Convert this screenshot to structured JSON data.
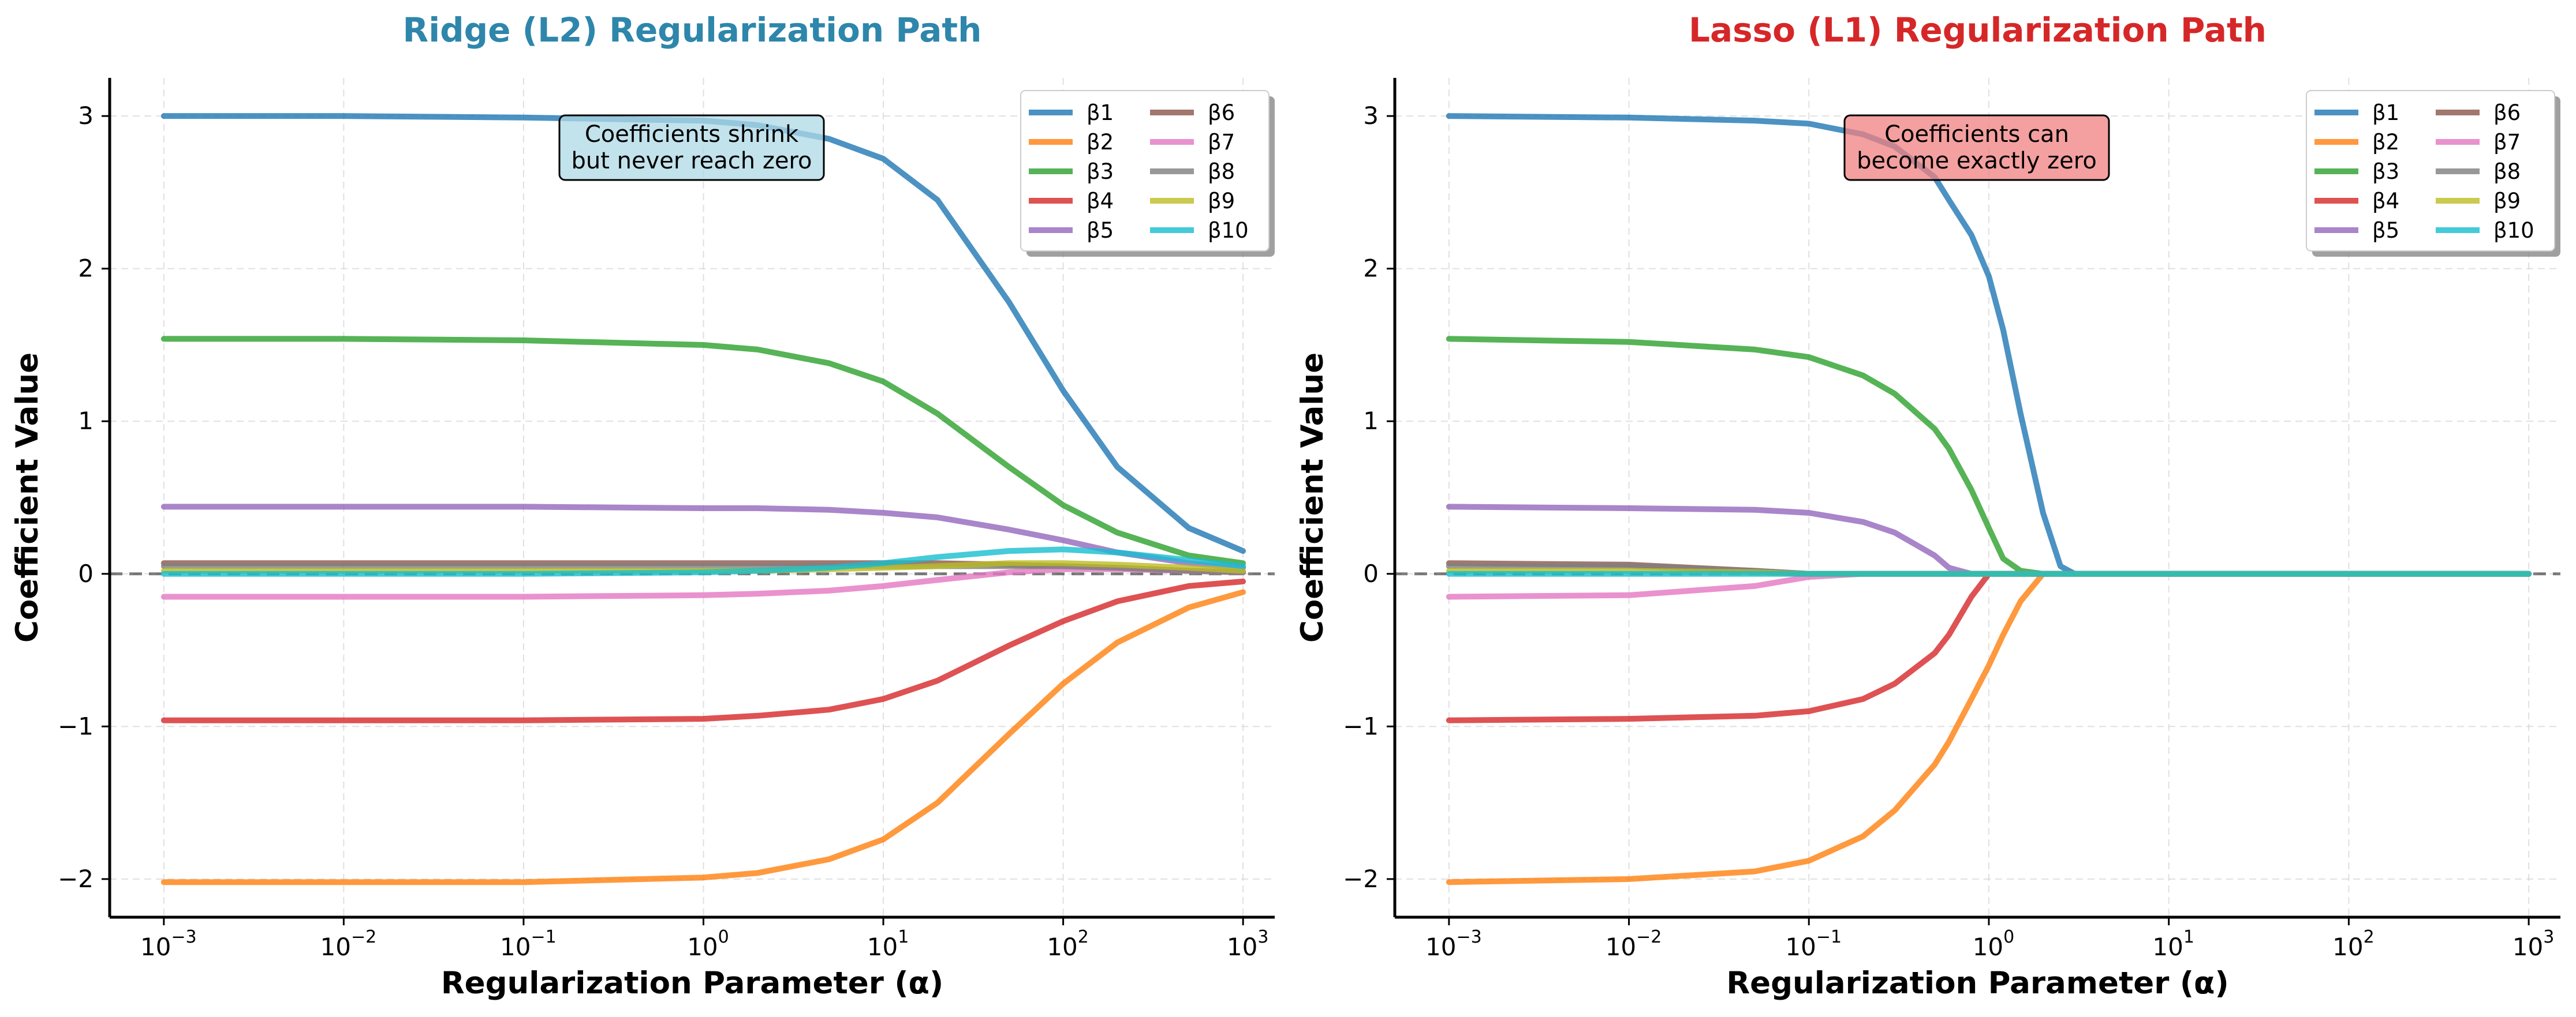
{
  "chart_data": [
    {
      "type": "line",
      "title": "Ridge (L2) Regularization Path",
      "title_color": "#2e86ab",
      "xlabel": "Regularization Parameter (α)",
      "ylabel": "Coefficient Value",
      "xscale": "log",
      "xlim": [
        0.0005,
        1500
      ],
      "ylim": [
        -2.25,
        3.25
      ],
      "x_ticks": [
        {
          "base": "10",
          "exp": "−3"
        },
        {
          "base": "10",
          "exp": "−2"
        },
        {
          "base": "10",
          "exp": "−1"
        },
        {
          "base": "10",
          "exp": "0"
        },
        {
          "base": "10",
          "exp": "1"
        },
        {
          "base": "10",
          "exp": "2"
        },
        {
          "base": "10",
          "exp": "3"
        }
      ],
      "y_ticks": [
        "−2",
        "−1",
        "0",
        "1",
        "2",
        "3"
      ],
      "grid": true,
      "legend_position": "top-right",
      "annotation": {
        "lines": [
          "Coefficients shrink",
          "but never reach zero"
        ],
        "bg": "#add8e6"
      },
      "x": [
        0.001,
        0.01,
        0.1,
        1,
        2,
        5,
        10,
        20,
        50,
        100,
        200,
        500,
        1000
      ],
      "series": [
        {
          "name": "β1",
          "color": "#1f77b4",
          "values": [
            3.0,
            3.0,
            2.99,
            2.97,
            2.94,
            2.85,
            2.72,
            2.45,
            1.78,
            1.2,
            0.7,
            0.3,
            0.15
          ]
        },
        {
          "name": "β2",
          "color": "#ff7f0e",
          "values": [
            -2.02,
            -2.02,
            -2.02,
            -1.99,
            -1.96,
            -1.87,
            -1.74,
            -1.5,
            -1.05,
            -0.72,
            -0.45,
            -0.22,
            -0.12
          ]
        },
        {
          "name": "β3",
          "color": "#2ca02c",
          "values": [
            1.54,
            1.54,
            1.53,
            1.5,
            1.47,
            1.38,
            1.26,
            1.05,
            0.7,
            0.45,
            0.27,
            0.12,
            0.07
          ]
        },
        {
          "name": "β4",
          "color": "#d62728",
          "values": [
            -0.96,
            -0.96,
            -0.96,
            -0.95,
            -0.93,
            -0.89,
            -0.82,
            -0.7,
            -0.47,
            -0.31,
            -0.18,
            -0.08,
            -0.05
          ]
        },
        {
          "name": "β5",
          "color": "#9467bd",
          "values": [
            0.44,
            0.44,
            0.44,
            0.43,
            0.43,
            0.42,
            0.4,
            0.37,
            0.29,
            0.22,
            0.14,
            0.07,
            0.04
          ]
        },
        {
          "name": "β6",
          "color": "#8c564b",
          "values": [
            0.07,
            0.07,
            0.07,
            0.07,
            0.07,
            0.07,
            0.07,
            0.07,
            0.06,
            0.05,
            0.04,
            0.02,
            0.01
          ]
        },
        {
          "name": "β7",
          "color": "#e377c2",
          "values": [
            -0.15,
            -0.15,
            -0.15,
            -0.14,
            -0.13,
            -0.11,
            -0.08,
            -0.04,
            0.01,
            0.03,
            0.03,
            0.02,
            0.01
          ]
        },
        {
          "name": "β8",
          "color": "#7f7f7f",
          "values": [
            0.05,
            0.05,
            0.05,
            0.05,
            0.05,
            0.05,
            0.05,
            0.05,
            0.05,
            0.05,
            0.04,
            0.02,
            0.01
          ]
        },
        {
          "name": "β9",
          "color": "#bcbd22",
          "values": [
            0.02,
            0.02,
            0.02,
            0.02,
            0.02,
            0.03,
            0.04,
            0.05,
            0.07,
            0.07,
            0.06,
            0.04,
            0.02
          ]
        },
        {
          "name": "β10",
          "color": "#17becf",
          "values": [
            0.0,
            0.0,
            0.0,
            0.01,
            0.02,
            0.04,
            0.07,
            0.11,
            0.15,
            0.16,
            0.14,
            0.09,
            0.05
          ]
        }
      ]
    },
    {
      "type": "line",
      "title": "Lasso (L1) Regularization Path",
      "title_color": "#d62728",
      "xlabel": "Regularization Parameter (α)",
      "ylabel": "Coefficient Value",
      "xscale": "log",
      "xlim": [
        0.0005,
        1500
      ],
      "ylim": [
        -2.25,
        3.25
      ],
      "x_ticks": [
        {
          "base": "10",
          "exp": "−3"
        },
        {
          "base": "10",
          "exp": "−2"
        },
        {
          "base": "10",
          "exp": "−1"
        },
        {
          "base": "10",
          "exp": "0"
        },
        {
          "base": "10",
          "exp": "1"
        },
        {
          "base": "10",
          "exp": "2"
        },
        {
          "base": "10",
          "exp": "3"
        }
      ],
      "y_ticks": [
        "−2",
        "−1",
        "0",
        "1",
        "2",
        "3"
      ],
      "grid": true,
      "legend_position": "top-right",
      "annotation": {
        "lines": [
          "Coefficients can",
          "become exactly zero"
        ],
        "bg": "#f08080"
      },
      "x": [
        0.001,
        0.01,
        0.05,
        0.1,
        0.2,
        0.3,
        0.5,
        0.6,
        0.8,
        1.0,
        1.2,
        1.5,
        2.0,
        2.5,
        3.0,
        10,
        100,
        1000
      ],
      "series": [
        {
          "name": "β1",
          "color": "#1f77b4",
          "values": [
            3.0,
            2.99,
            2.97,
            2.95,
            2.88,
            2.8,
            2.6,
            2.45,
            2.22,
            1.95,
            1.6,
            1.05,
            0.4,
            0.05,
            0,
            0,
            0,
            0
          ]
        },
        {
          "name": "β2",
          "color": "#ff7f0e",
          "values": [
            -2.02,
            -2.0,
            -1.95,
            -1.88,
            -1.72,
            -1.55,
            -1.25,
            -1.1,
            -0.82,
            -0.6,
            -0.4,
            -0.18,
            0,
            0,
            0,
            0,
            0,
            0
          ]
        },
        {
          "name": "β3",
          "color": "#2ca02c",
          "values": [
            1.54,
            1.52,
            1.47,
            1.42,
            1.3,
            1.18,
            0.95,
            0.82,
            0.55,
            0.3,
            0.1,
            0.02,
            0,
            0,
            0,
            0,
            0,
            0
          ]
        },
        {
          "name": "β4",
          "color": "#d62728",
          "values": [
            -0.96,
            -0.95,
            -0.93,
            -0.9,
            -0.82,
            -0.72,
            -0.52,
            -0.4,
            -0.15,
            0,
            0,
            0,
            0,
            0,
            0,
            0,
            0,
            0
          ]
        },
        {
          "name": "β5",
          "color": "#9467bd",
          "values": [
            0.44,
            0.43,
            0.42,
            0.4,
            0.34,
            0.27,
            0.12,
            0.04,
            0,
            0,
            0,
            0,
            0,
            0,
            0,
            0,
            0,
            0
          ]
        },
        {
          "name": "β6",
          "color": "#8c564b",
          "values": [
            0.07,
            0.06,
            0.02,
            0,
            0,
            0,
            0,
            0,
            0,
            0,
            0,
            0,
            0,
            0,
            0,
            0,
            0,
            0
          ]
        },
        {
          "name": "β7",
          "color": "#e377c2",
          "values": [
            -0.15,
            -0.14,
            -0.08,
            -0.02,
            0,
            0,
            0,
            0,
            0,
            0,
            0,
            0,
            0,
            0,
            0,
            0,
            0,
            0
          ]
        },
        {
          "name": "β8",
          "color": "#7f7f7f",
          "values": [
            0.05,
            0.05,
            0.02,
            0,
            0,
            0,
            0,
            0,
            0,
            0,
            0,
            0,
            0,
            0,
            0,
            0,
            0,
            0
          ]
        },
        {
          "name": "β9",
          "color": "#bcbd22",
          "values": [
            0.02,
            0.02,
            0.01,
            0,
            0,
            0,
            0,
            0,
            0,
            0,
            0,
            0,
            0,
            0,
            0,
            0,
            0,
            0
          ]
        },
        {
          "name": "β10",
          "color": "#17becf",
          "values": [
            0,
            0,
            0,
            0,
            0,
            0,
            0,
            0,
            0,
            0,
            0,
            0,
            0,
            0,
            0,
            0,
            0,
            0
          ]
        }
      ]
    }
  ]
}
